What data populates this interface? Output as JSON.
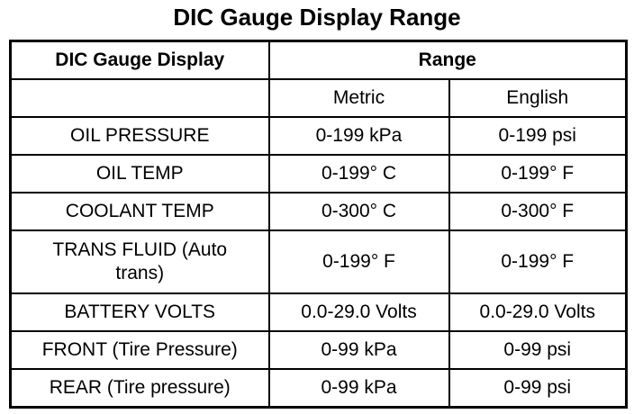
{
  "header": {
    "title": "DIC Gauge Display Range"
  },
  "table": {
    "columns": [
      "DIC Gauge Display",
      "Range"
    ],
    "subcolumns": [
      "Metric",
      "English"
    ],
    "rows": [
      [
        "OIL PRESSURE",
        "0-199 kPa",
        "0-199 psi"
      ],
      [
        "OIL TEMP",
        "0-199° C",
        "0-199° F"
      ],
      [
        "COOLANT TEMP",
        "0-300° C",
        "0-300° F"
      ],
      [
        "TRANS FLUID (Auto trans)",
        "0-199° F",
        "0-199° F"
      ],
      [
        "BATTERY VOLTS",
        "0.0-29.0 Volts",
        "0.0-29.0 Volts"
      ],
      [
        "FRONT (Tire Pressure)",
        "0-99 kPa",
        "0-99 psi"
      ],
      [
        "REAR (Tire pressure)",
        "0-99 kPa",
        "0-99 psi"
      ]
    ]
  }
}
